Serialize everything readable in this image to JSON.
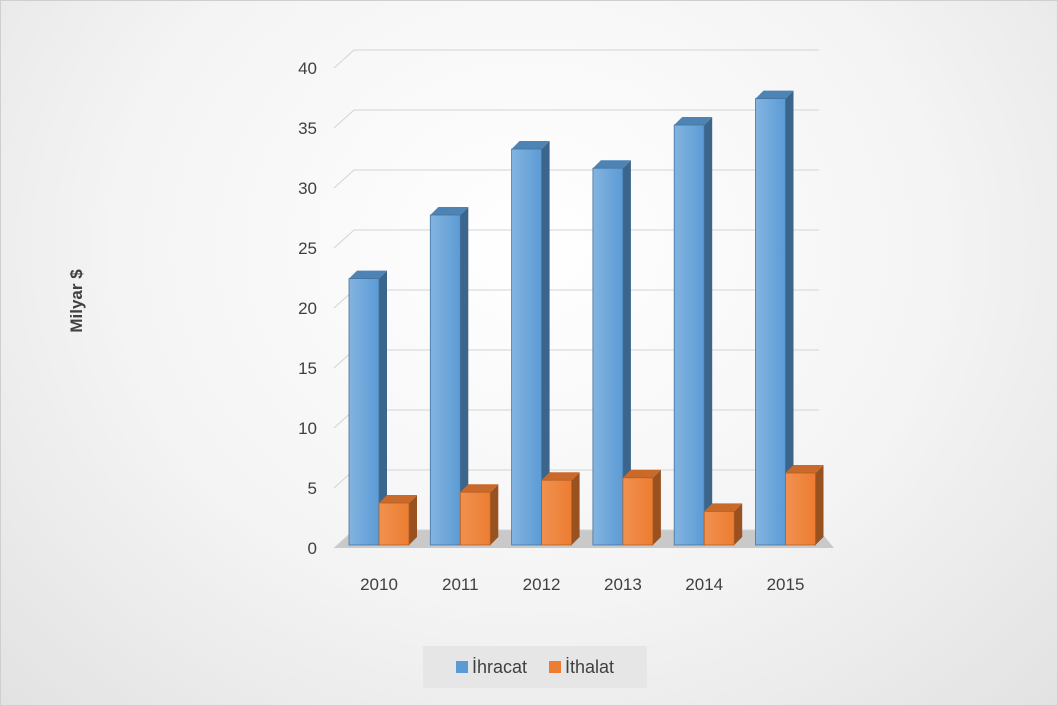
{
  "chart_data": {
    "type": "bar",
    "categories": [
      "2010",
      "2011",
      "2012",
      "2013",
      "2014",
      "2015"
    ],
    "series": [
      {
        "name": "İhracat",
        "values": [
          22.2,
          27.5,
          33.0,
          31.4,
          35.0,
          37.2
        ],
        "color": "#5b9bd5"
      },
      {
        "name": "İthalat",
        "values": [
          3.5,
          4.4,
          5.4,
          5.6,
          2.8,
          6.0
        ],
        "color": "#ed7d31"
      }
    ],
    "title": "",
    "xlabel": "",
    "ylabel": "Milyar $",
    "ylim": [
      0,
      40
    ],
    "yticks": [
      "0",
      "5",
      "10",
      "15",
      "20",
      "25",
      "30",
      "35",
      "40"
    ],
    "grid": true,
    "legend": "bottom",
    "style": "3d-clustered-column"
  }
}
